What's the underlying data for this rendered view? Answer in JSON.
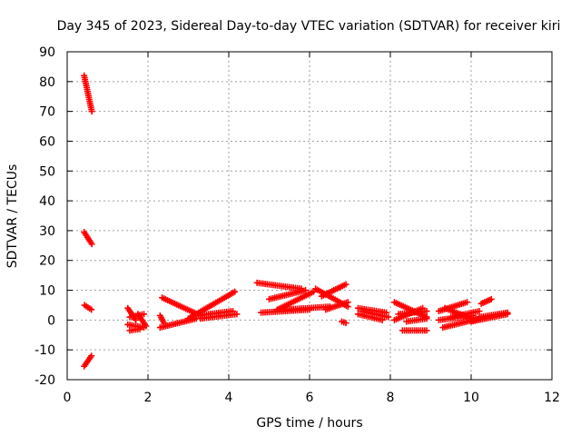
{
  "chart_data": {
    "type": "scatter",
    "title": "Day 345 of 2023, Sidereal Day-to-day VTEC variation (SDTVAR) for receiver kiri",
    "xlabel": "GPS time / hours",
    "ylabel": "SDTVAR / TECUs",
    "xlim": [
      0,
      12
    ],
    "ylim": [
      -20,
      90
    ],
    "xticks": [
      0,
      2,
      4,
      6,
      8,
      10,
      12
    ],
    "yticks": [
      -20,
      -10,
      0,
      10,
      20,
      30,
      40,
      50,
      60,
      70,
      80,
      90
    ],
    "grid": true,
    "marker": "plus",
    "color": "#ff0000",
    "segments": [
      {
        "x": [
          0.42,
          0.61
        ],
        "y": [
          82,
          70
        ]
      },
      {
        "x": [
          0.42,
          0.61
        ],
        "y": [
          29.5,
          25.5
        ]
      },
      {
        "x": [
          0.43,
          0.6
        ],
        "y": [
          5,
          3.5
        ]
      },
      {
        "x": [
          0.42,
          0.6
        ],
        "y": [
          -15.5,
          -12
        ]
      },
      {
        "x": [
          1.5,
          1.7
        ],
        "y": [
          4,
          0
        ]
      },
      {
        "x": [
          1.5,
          1.9
        ],
        "y": [
          -1.5,
          -2.5
        ]
      },
      {
        "x": [
          1.55,
          1.9
        ],
        "y": [
          1,
          2
        ]
      },
      {
        "x": [
          1.55,
          1.8
        ],
        "y": [
          -3.5,
          -3
        ]
      },
      {
        "x": [
          1.75,
          1.95
        ],
        "y": [
          2,
          -2
        ]
      },
      {
        "x": [
          2.3,
          3.2
        ],
        "y": [
          -2.5,
          0.5
        ]
      },
      {
        "x": [
          2.3,
          2.4
        ],
        "y": [
          1.5,
          -1
        ]
      },
      {
        "x": [
          2.35,
          3.3
        ],
        "y": [
          7.5,
          1.5
        ]
      },
      {
        "x": [
          3.0,
          4.15
        ],
        "y": [
          0.5,
          9.5
        ]
      },
      {
        "x": [
          3.2,
          4.1
        ],
        "y": [
          1.5,
          3
        ]
      },
      {
        "x": [
          3.3,
          4.2
        ],
        "y": [
          0.5,
          2
        ]
      },
      {
        "x": [
          4.7,
          5.8
        ],
        "y": [
          12.5,
          10.5
        ]
      },
      {
        "x": [
          4.8,
          6.0
        ],
        "y": [
          2.5,
          3.5
        ]
      },
      {
        "x": [
          5.0,
          5.9
        ],
        "y": [
          7,
          10
        ]
      },
      {
        "x": [
          5.2,
          6.1
        ],
        "y": [
          3.5,
          9.5
        ]
      },
      {
        "x": [
          5.4,
          6.5
        ],
        "y": [
          3.5,
          4.5
        ]
      },
      {
        "x": [
          6.15,
          6.95
        ],
        "y": [
          10.5,
          4.5
        ]
      },
      {
        "x": [
          6.3,
          6.9
        ],
        "y": [
          8,
          12
        ]
      },
      {
        "x": [
          6.4,
          6.95
        ],
        "y": [
          3.5,
          6
        ]
      },
      {
        "x": [
          6.8,
          6.9
        ],
        "y": [
          -0.5,
          -1
        ]
      },
      {
        "x": [
          7.2,
          7.9
        ],
        "y": [
          4,
          2.5
        ]
      },
      {
        "x": [
          7.2,
          7.8
        ],
        "y": [
          2,
          0
        ]
      },
      {
        "x": [
          7.3,
          7.95
        ],
        "y": [
          3,
          1
        ]
      },
      {
        "x": [
          8.1,
          8.9
        ],
        "y": [
          6,
          1
        ]
      },
      {
        "x": [
          8.1,
          8.8
        ],
        "y": [
          0,
          4
        ]
      },
      {
        "x": [
          8.2,
          8.9
        ],
        "y": [
          2,
          3
        ]
      },
      {
        "x": [
          8.3,
          8.9
        ],
        "y": [
          -3.5,
          -3.5
        ]
      },
      {
        "x": [
          8.4,
          8.9
        ],
        "y": [
          -0.5,
          0.5
        ]
      },
      {
        "x": [
          9.2,
          9.9
        ],
        "y": [
          3,
          6
        ]
      },
      {
        "x": [
          9.2,
          10.05
        ],
        "y": [
          0,
          1.5
        ]
      },
      {
        "x": [
          9.3,
          10.2
        ],
        "y": [
          -2.5,
          0.5
        ]
      },
      {
        "x": [
          9.35,
          10.1
        ],
        "y": [
          4,
          0
        ]
      },
      {
        "x": [
          9.5,
          10.2
        ],
        "y": [
          1,
          3
        ]
      },
      {
        "x": [
          10.0,
          10.9
        ],
        "y": [
          -0.5,
          2
        ]
      },
      {
        "x": [
          10.2,
          10.9
        ],
        "y": [
          1,
          2.5
        ]
      },
      {
        "x": [
          10.25,
          10.5
        ],
        "y": [
          5.5,
          7
        ]
      }
    ]
  }
}
